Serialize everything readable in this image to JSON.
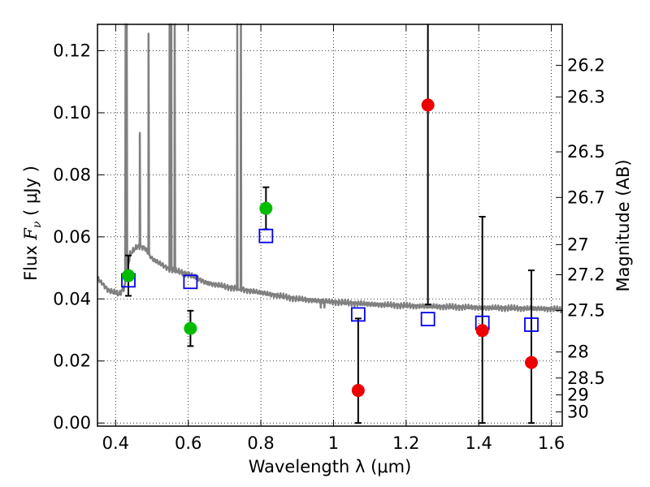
{
  "chart_data": {
    "type": "scatter",
    "xlabel": "Wavelength  λ (μm)",
    "ylabel_left_pre": "Flux  ",
    "ylabel_left_math": "F",
    "ylabel_left_sub": "ν",
    "ylabel_left_post": "  ( μJy )",
    "ylabel_right": "Magnitude (AB)",
    "xlim": [
      0.35,
      1.63
    ],
    "ylim": [
      -0.001,
      0.1285
    ],
    "grid": true,
    "x_ticks": [
      0.4,
      0.6,
      0.8,
      1.0,
      1.2,
      1.4,
      1.6
    ],
    "x_tick_labels": [
      "0.4",
      "0.6",
      "0.8",
      "1",
      "1.2",
      "1.4",
      "1.6"
    ],
    "y_ticks": [
      0.0,
      0.02,
      0.04,
      0.06,
      0.08,
      0.1,
      0.12
    ],
    "y_tick_labels": [
      "0.00",
      "0.02",
      "0.04",
      "0.06",
      "0.08",
      "0.10",
      "0.12"
    ],
    "right_ticks": [
      {
        "label": "26.2",
        "flux": 0.1153
      },
      {
        "label": "26.3",
        "flux": 0.1051
      },
      {
        "label": "26.5",
        "flux": 0.0874
      },
      {
        "label": "26.7",
        "flux": 0.0727
      },
      {
        "label": "27",
        "flux": 0.0575
      },
      {
        "label": "27.2",
        "flux": 0.0478
      },
      {
        "label": "27.5",
        "flux": 0.0363
      },
      {
        "label": "28",
        "flux": 0.0229
      },
      {
        "label": "28.5",
        "flux": 0.0145
      },
      {
        "label": "29",
        "flux": 0.0091
      },
      {
        "label": "30",
        "flux": 0.0036
      }
    ],
    "series": [
      {
        "marker": "circle",
        "color": "#00bb00",
        "points": [
          {
            "x": 0.435,
            "y": 0.0475,
            "yerr": 0.0065
          },
          {
            "x": 0.606,
            "y": 0.0305,
            "yerr": 0.0057
          },
          {
            "x": 0.814,
            "y": 0.0692,
            "yerr": 0.0068
          }
        ]
      },
      {
        "marker": "circle",
        "color": "#ee0000",
        "points": [
          {
            "x": 1.068,
            "y": 0.0105,
            "yerr_low": 0.0105,
            "yerr_high": 0.0232
          },
          {
            "x": 1.26,
            "y": 0.1025,
            "yerr_low": 0.0643,
            "yerr_high": 0.05
          },
          {
            "x": 1.41,
            "y": 0.0298,
            "yerr_low": 0.0298,
            "yerr_high": 0.0367
          },
          {
            "x": 1.545,
            "y": 0.0195,
            "yerr_low": 0.0195,
            "yerr_high": 0.0297
          }
        ]
      },
      {
        "marker": "open-square",
        "color": "#0000ee",
        "points": [
          {
            "x": 0.435,
            "y": 0.046
          },
          {
            "x": 0.606,
            "y": 0.0455
          },
          {
            "x": 0.814,
            "y": 0.0603
          },
          {
            "x": 1.068,
            "y": 0.035
          },
          {
            "x": 1.26,
            "y": 0.0335
          },
          {
            "x": 1.41,
            "y": 0.0323
          },
          {
            "x": 1.545,
            "y": 0.0317
          }
        ]
      },
      {
        "marker": "line",
        "color": "#808080",
        "continuum": [
          [
            0.35,
            0.0467
          ],
          [
            0.38,
            0.0428
          ],
          [
            0.41,
            0.0415
          ],
          [
            0.425,
            0.044
          ],
          [
            0.44,
            0.0545
          ],
          [
            0.46,
            0.057
          ],
          [
            0.48,
            0.0565
          ],
          [
            0.5,
            0.053
          ],
          [
            0.52,
            0.0515
          ],
          [
            0.55,
            0.0495
          ],
          [
            0.6,
            0.048
          ],
          [
            0.65,
            0.0452
          ],
          [
            0.7,
            0.044
          ],
          [
            0.75,
            0.043
          ],
          [
            0.8,
            0.042
          ],
          [
            0.85,
            0.041
          ],
          [
            0.9,
            0.04
          ],
          [
            0.95,
            0.0395
          ],
          [
            1.0,
            0.039
          ],
          [
            1.1,
            0.0383
          ],
          [
            1.2,
            0.0378
          ],
          [
            1.3,
            0.0375
          ],
          [
            1.4,
            0.0372
          ],
          [
            1.5,
            0.037
          ],
          [
            1.6,
            0.0368
          ],
          [
            1.63,
            0.0365
          ]
        ],
        "emission_lines": [
          {
            "x": 0.4275,
            "peak": 0.13
          },
          {
            "x": 0.4305,
            "peak": 0.13
          },
          {
            "x": 0.4665,
            "peak": 0.0935
          },
          {
            "x": 0.4905,
            "peak": 0.1255
          },
          {
            "x": 0.5485,
            "peak": 0.13
          },
          {
            "x": 0.5535,
            "peak": 0.13
          },
          {
            "x": 0.5625,
            "peak": 0.13
          },
          {
            "x": 0.735,
            "peak": 0.13
          },
          {
            "x": 0.745,
            "peak": 0.13
          }
        ],
        "absorption_dips": [
          {
            "x": 0.965,
            "depth": 0.0372
          },
          {
            "x": 0.975,
            "depth": 0.0372
          }
        ]
      }
    ]
  }
}
